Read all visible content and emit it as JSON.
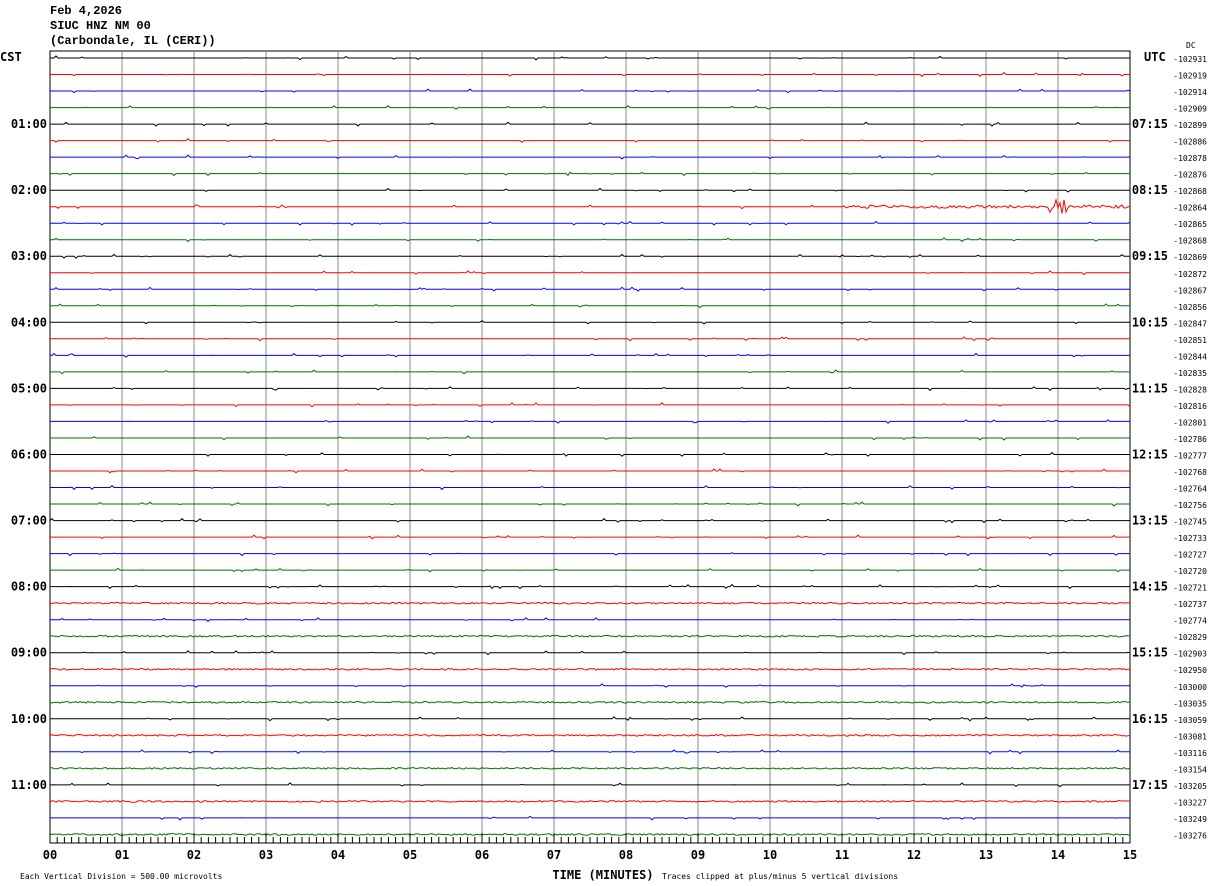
{
  "header": {
    "date": "Feb 4,2026",
    "station": "SIUC HNZ NM 00",
    "location": "(Carbondale, IL (CERI))"
  },
  "chart_data": {
    "type": "line",
    "title": "Feb 4,2026 SIUC HNZ NM 00 (Carbondale, IL (CERI))",
    "left_axis_label": "CST",
    "right_axis_label": "UTC",
    "dc_label": "DC",
    "xlabel": "TIME (MINUTES)",
    "x_ticks": [
      "00",
      "01",
      "02",
      "03",
      "04",
      "05",
      "06",
      "07",
      "08",
      "09",
      "10",
      "11",
      "12",
      "13",
      "14",
      "15"
    ],
    "xlim": [
      0,
      15
    ],
    "cst_hour_labels": [
      "01:00",
      "02:00",
      "03:00",
      "04:00",
      "05:00",
      "06:00",
      "07:00",
      "08:00",
      "09:00",
      "10:00",
      "11:00"
    ],
    "utc_hour_labels": [
      "07:15",
      "08:15",
      "09:15",
      "10:15",
      "11:15",
      "12:15",
      "13:15",
      "14:15",
      "15:15",
      "16:15",
      "17:15"
    ],
    "minutes_per_line": 15,
    "trace_colors": [
      "#000000",
      "#ff0000",
      "#0000ff",
      "#007000"
    ],
    "dc_offsets": [
      -102931,
      -102919,
      -102914,
      -102909,
      -102899,
      -102886,
      -102878,
      -102876,
      -102868,
      -102864,
      -102865,
      -102868,
      -102869,
      -102872,
      -102867,
      -102856,
      -102847,
      -102851,
      -102844,
      -102835,
      -102828,
      -102816,
      -102801,
      -102786,
      -102777,
      -102768,
      -102764,
      -102756,
      -102745,
      -102733,
      -102727,
      -102720,
      -102721,
      -102737,
      -102774,
      -102829,
      -102903,
      -102950,
      -103000,
      -103035,
      -103059,
      -103081,
      -103116,
      -103154,
      -103205,
      -103227,
      -103249,
      -103276
    ],
    "footer_left": "Each Vertical Division =  500.00 microvolts",
    "footer_right": "Traces clipped at plus/minus 5 vertical divisions",
    "grid": true
  }
}
